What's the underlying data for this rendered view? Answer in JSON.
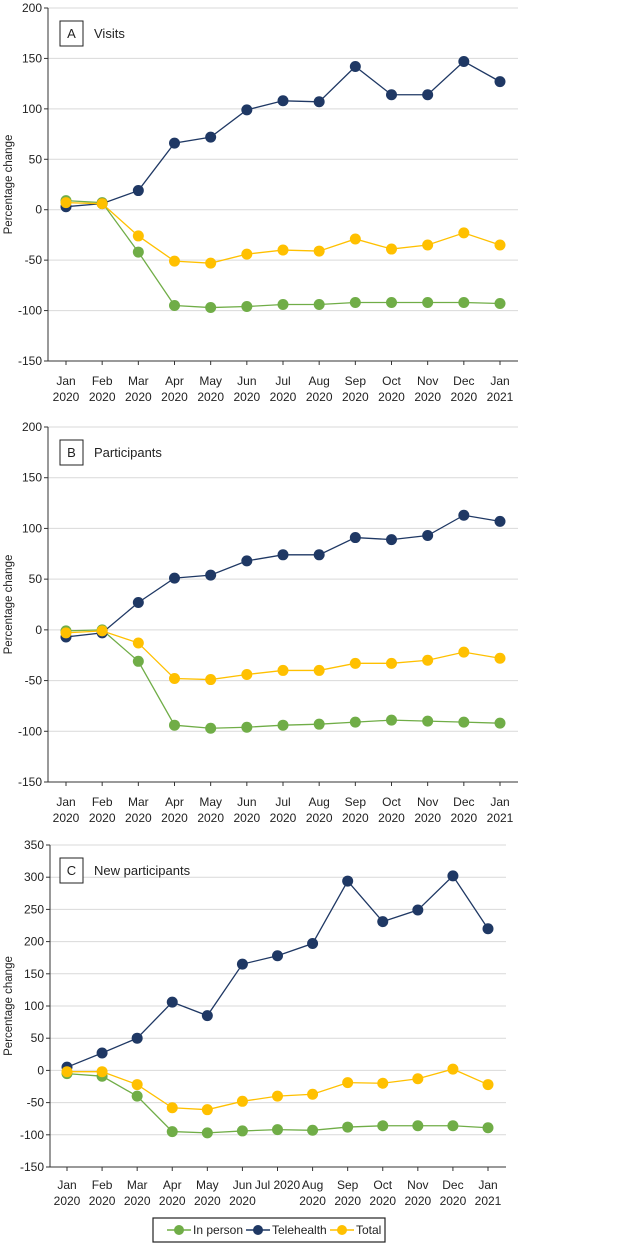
{
  "colors": {
    "in_person": "#70ad47",
    "telehealth": "#1f3864",
    "total": "#ffc000"
  },
  "legend": {
    "position": "bottom",
    "items": [
      "In person",
      "Telehealth",
      "Total"
    ]
  },
  "chart_data": [
    {
      "type": "line",
      "panel_letter": "A",
      "title": "Visits",
      "ylabel": "Percentage change",
      "xlabel": "",
      "ylim": [
        -150,
        200
      ],
      "yticks": [
        200,
        150,
        100,
        50,
        0,
        -50,
        -100,
        -150
      ],
      "grid": true,
      "categories": [
        [
          "Jan",
          "2020"
        ],
        [
          "Feb",
          "2020"
        ],
        [
          "Mar",
          "2020"
        ],
        [
          "Apr",
          "2020"
        ],
        [
          "May",
          "2020"
        ],
        [
          "Jun",
          "2020"
        ],
        [
          "Jul",
          "2020"
        ],
        [
          "Aug",
          "2020"
        ],
        [
          "Sep",
          "2020"
        ],
        [
          "Oct",
          "2020"
        ],
        [
          "Nov",
          "2020"
        ],
        [
          "Dec",
          "2020"
        ],
        [
          "Jan",
          "2021"
        ]
      ],
      "series": [
        {
          "name": "In person",
          "values": [
            9,
            7,
            -42,
            -95,
            -97,
            -96,
            -94,
            -94,
            -92,
            -92,
            -92,
            -92,
            -93
          ]
        },
        {
          "name": "Telehealth",
          "values": [
            3,
            6,
            19,
            66,
            72,
            99,
            108,
            107,
            142,
            114,
            114,
            147,
            127
          ]
        },
        {
          "name": "Total",
          "values": [
            7,
            6,
            -26,
            -51,
            -53,
            -44,
            -40,
            -41,
            -29,
            -39,
            -35,
            -23,
            -35
          ]
        }
      ]
    },
    {
      "type": "line",
      "panel_letter": "B",
      "title": "Participants",
      "ylabel": "Percentage change",
      "xlabel": "",
      "ylim": [
        -150,
        200
      ],
      "yticks": [
        200,
        150,
        100,
        50,
        0,
        -50,
        -100,
        -150
      ],
      "grid": true,
      "categories": [
        [
          "Jan",
          "2020"
        ],
        [
          "Feb",
          "2020"
        ],
        [
          "Mar",
          "2020"
        ],
        [
          "Apr",
          "2020"
        ],
        [
          "May",
          "2020"
        ],
        [
          "Jun",
          "2020"
        ],
        [
          "Jul",
          "2020"
        ],
        [
          "Aug",
          "2020"
        ],
        [
          "Sep",
          "2020"
        ],
        [
          "Oct",
          "2020"
        ],
        [
          "Nov",
          "2020"
        ],
        [
          "Dec",
          "2020"
        ],
        [
          "Jan",
          "2021"
        ]
      ],
      "series": [
        {
          "name": "In person",
          "values": [
            -1,
            0,
            -31,
            -94,
            -97,
            -96,
            -94,
            -93,
            -91,
            -89,
            -90,
            -91,
            -92
          ]
        },
        {
          "name": "Telehealth",
          "values": [
            -7,
            -3,
            27,
            51,
            54,
            68,
            74,
            74,
            91,
            89,
            93,
            113,
            107
          ]
        },
        {
          "name": "Total",
          "values": [
            -3,
            -1,
            -13,
            -48,
            -49,
            -44,
            -40,
            -40,
            -33,
            -33,
            -30,
            -22,
            -28
          ]
        }
      ]
    },
    {
      "type": "line",
      "panel_letter": "C",
      "title": "New participants",
      "ylabel": "Percentage change",
      "xlabel": "",
      "ylim": [
        -150,
        350
      ],
      "yticks": [
        350,
        300,
        250,
        200,
        150,
        100,
        50,
        0,
        -50,
        -100,
        -150
      ],
      "grid": true,
      "categories": [
        [
          "Jan",
          "2020"
        ],
        [
          "Feb",
          "2020"
        ],
        [
          "Mar",
          "2020"
        ],
        [
          "Apr",
          "2020"
        ],
        [
          "May",
          "2020"
        ],
        [
          "Jun",
          "2020"
        ],
        [
          "Jul 2020"
        ],
        [
          "Aug",
          "2020"
        ],
        [
          "Sep",
          "2020"
        ],
        [
          "Oct",
          "2020"
        ],
        [
          "Nov",
          "2020"
        ],
        [
          "Dec",
          "2020"
        ],
        [
          "Jan",
          "2021"
        ]
      ],
      "series": [
        {
          "name": "In person",
          "values": [
            -5,
            -9,
            -40,
            -95,
            -97,
            -94,
            -92,
            -93,
            -88,
            -86,
            -86,
            -86,
            -89
          ]
        },
        {
          "name": "Telehealth",
          "values": [
            5,
            27,
            50,
            106,
            85,
            165,
            178,
            197,
            294,
            231,
            249,
            302,
            220
          ]
        },
        {
          "name": "Total",
          "values": [
            -2,
            -2,
            -22,
            -58,
            -61,
            -48,
            -40,
            -37,
            -19,
            -20,
            -13,
            2,
            -22
          ]
        }
      ]
    }
  ]
}
